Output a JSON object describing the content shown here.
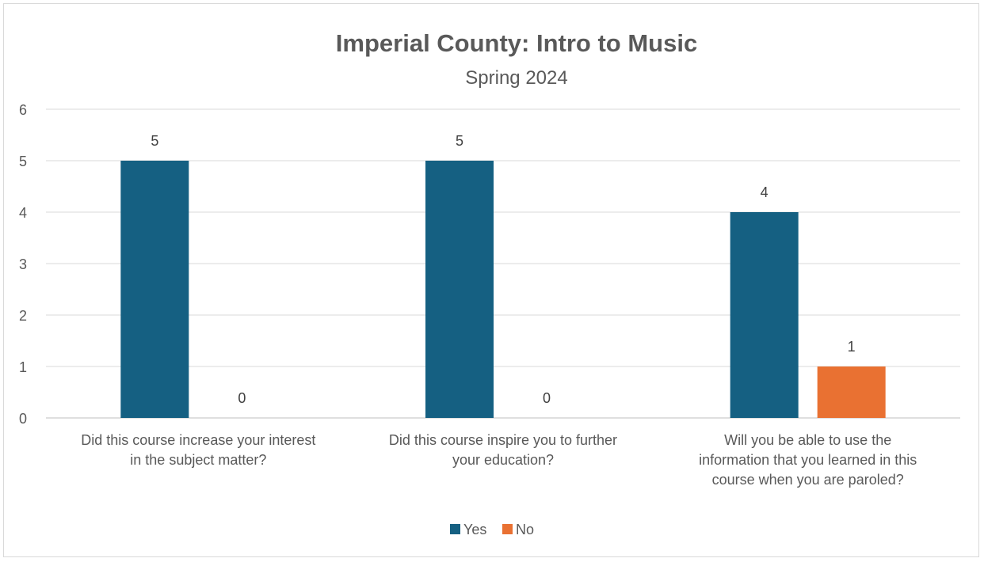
{
  "chart_data": {
    "type": "bar",
    "title": "Imperial County: Intro to Music",
    "subtitle": "Spring 2024",
    "categories": [
      [
        "Did this course increase your interest",
        "in the subject matter?"
      ],
      [
        "Did this course inspire you to further",
        "your education?"
      ],
      [
        "Will you be able to use the",
        "information that you learned in this",
        "course when you are paroled?"
      ]
    ],
    "series": [
      {
        "name": "Yes",
        "values": [
          5,
          5,
          4
        ],
        "color": "#156082"
      },
      {
        "name": "No",
        "values": [
          0,
          0,
          1
        ],
        "color": "#E97132"
      }
    ],
    "ylim": [
      0,
      6
    ],
    "yticks": [
      0,
      1,
      2,
      3,
      4,
      5,
      6
    ],
    "grid": true,
    "legend": "bottom",
    "data_labels": true
  }
}
